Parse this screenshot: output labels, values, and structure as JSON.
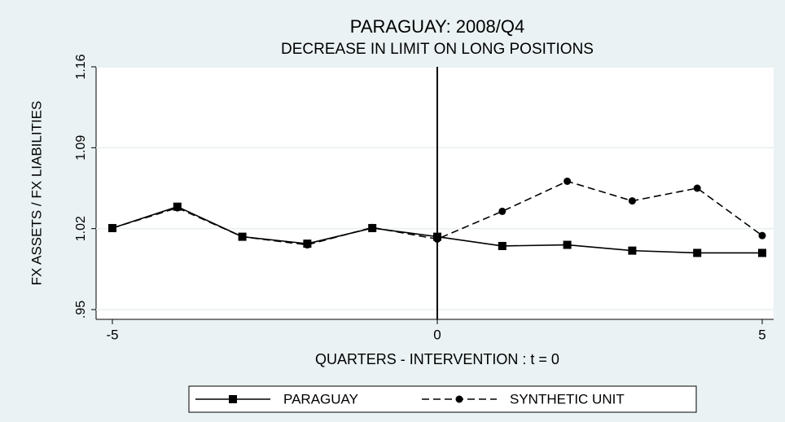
{
  "chart_data": {
    "type": "line",
    "title": "PARAGUAY: 2008/Q4",
    "subtitle": "DECREASE IN LIMIT ON LONG POSITIONS",
    "x_label": "QUARTERS - INTERVENTION : t = 0",
    "y_label": "FX ASSETS / FX LIABILITIES",
    "x": [
      -5,
      -4,
      -3,
      -2,
      -1,
      0,
      1,
      2,
      3,
      4,
      5
    ],
    "series": [
      {
        "name": "PARAGUAY",
        "color": "#000000",
        "line_style": "solid",
        "marker": "square",
        "values": [
          1.0205,
          1.039,
          1.013,
          1.007,
          1.0205,
          1.013,
          1.005,
          1.006,
          1.001,
          0.999,
          0.999
        ]
      },
      {
        "name": "SYNTHETIC UNIT",
        "color": "#000000",
        "line_style": "dashed",
        "marker": "circle",
        "values": [
          1.0205,
          1.038,
          1.013,
          1.006,
          1.021,
          1.011,
          1.035,
          1.061,
          1.044,
          1.055,
          1.014
        ]
      }
    ],
    "xlim": [
      -5,
      5
    ],
    "xticks": [
      -5,
      0,
      5
    ],
    "ylim": [
      0.95,
      1.16
    ],
    "yticks": [
      {
        "value": 0.95,
        "label": ".95"
      },
      1.02,
      1.09,
      1.16
    ],
    "grid": true,
    "xline": 0,
    "legend_position": "bottom"
  }
}
